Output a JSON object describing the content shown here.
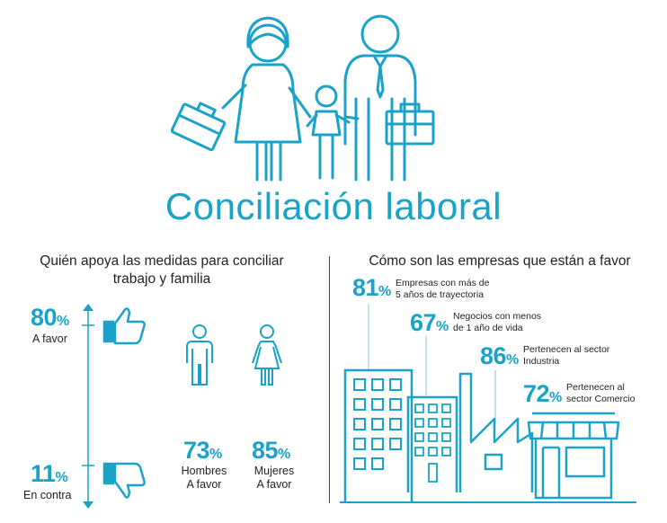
{
  "title": "Conciliación laboral",
  "left": {
    "heading_line1": "Quién apoya las medidas para conciliar",
    "heading_line2": "trabajo y familia",
    "favor": {
      "value": "80",
      "unit": "%",
      "label": "A favor"
    },
    "contra": {
      "value": "11",
      "unit": "%",
      "label": "En contra"
    },
    "men": {
      "value": "73",
      "unit": "%",
      "label1": "Hombres",
      "label2": "A favor"
    },
    "women": {
      "value": "85",
      "unit": "%",
      "label1": "Mujeres",
      "label2": "A favor"
    }
  },
  "right": {
    "heading": "Cómo son las empresas que están a favor",
    "items": [
      {
        "value": "81",
        "unit": "%",
        "line1": "Empresas con más de",
        "line2": "5 años de trayectoria"
      },
      {
        "value": "67",
        "unit": "%",
        "line1": "Negocios con menos",
        "line2": "de 1 año de vida"
      },
      {
        "value": "86",
        "unit": "%",
        "line1": "Pertenecen al sector",
        "line2": "Industria"
      },
      {
        "value": "72",
        "unit": "%",
        "line1": "Pertenecen al",
        "line2": "sector Comercio"
      }
    ]
  },
  "colors": {
    "accent": "#1aa3c8",
    "text": "#222222"
  },
  "icons": [
    "family-illustration-icon",
    "thumbs-up-icon",
    "thumbs-down-icon",
    "man-icon",
    "woman-icon",
    "office-building-icon",
    "small-building-icon",
    "factory-icon",
    "shop-icon"
  ]
}
